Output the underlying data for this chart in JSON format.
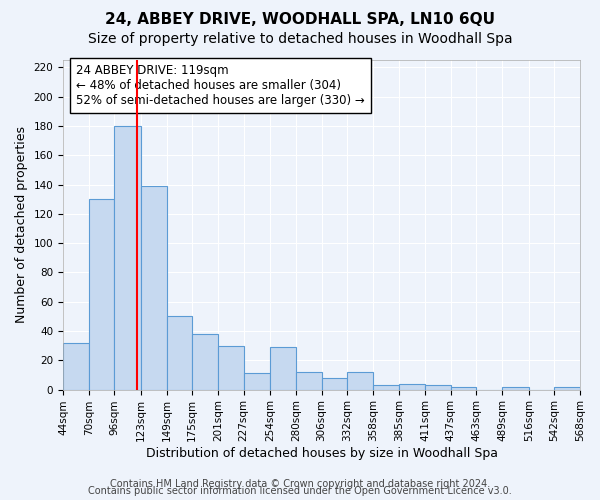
{
  "title": "24, ABBEY DRIVE, WOODHALL SPA, LN10 6QU",
  "subtitle": "Size of property relative to detached houses in Woodhall Spa",
  "xlabel": "Distribution of detached houses by size in Woodhall Spa",
  "ylabel": "Number of detached properties",
  "bin_edges": [
    44,
    70,
    96,
    123,
    149,
    175,
    201,
    227,
    254,
    280,
    306,
    332,
    358,
    385,
    411,
    437,
    463,
    489,
    516,
    542,
    568
  ],
  "bin_labels": [
    "44sqm",
    "70sqm",
    "96sqm",
    "123sqm",
    "149sqm",
    "175sqm",
    "201sqm",
    "227sqm",
    "254sqm",
    "280sqm",
    "306sqm",
    "332sqm",
    "358sqm",
    "385sqm",
    "411sqm",
    "437sqm",
    "463sqm",
    "489sqm",
    "516sqm",
    "542sqm",
    "568sqm"
  ],
  "counts": [
    32,
    130,
    180,
    139,
    50,
    38,
    30,
    11,
    29,
    12,
    8,
    12,
    3,
    4,
    3,
    2,
    0,
    2,
    0,
    2
  ],
  "bar_color": "#c6d9f0",
  "bar_edge_color": "#5b9bd5",
  "vline_x": 119,
  "vline_color": "red",
  "annotation_text": "24 ABBEY DRIVE: 119sqm\n← 48% of detached houses are smaller (304)\n52% of semi-detached houses are larger (330) →",
  "annotation_box_color": "white",
  "annotation_box_edge": "black",
  "ylim": [
    0,
    225
  ],
  "yticks": [
    0,
    20,
    40,
    60,
    80,
    100,
    120,
    140,
    160,
    180,
    200,
    220
  ],
  "background_color": "#eef3fb",
  "grid_color": "white",
  "footer_line1": "Contains HM Land Registry data © Crown copyright and database right 2024.",
  "footer_line2": "Contains public sector information licensed under the Open Government Licence v3.0.",
  "title_fontsize": 11,
  "subtitle_fontsize": 10,
  "xlabel_fontsize": 9,
  "ylabel_fontsize": 9,
  "annotation_fontsize": 8.5,
  "footer_fontsize": 7
}
